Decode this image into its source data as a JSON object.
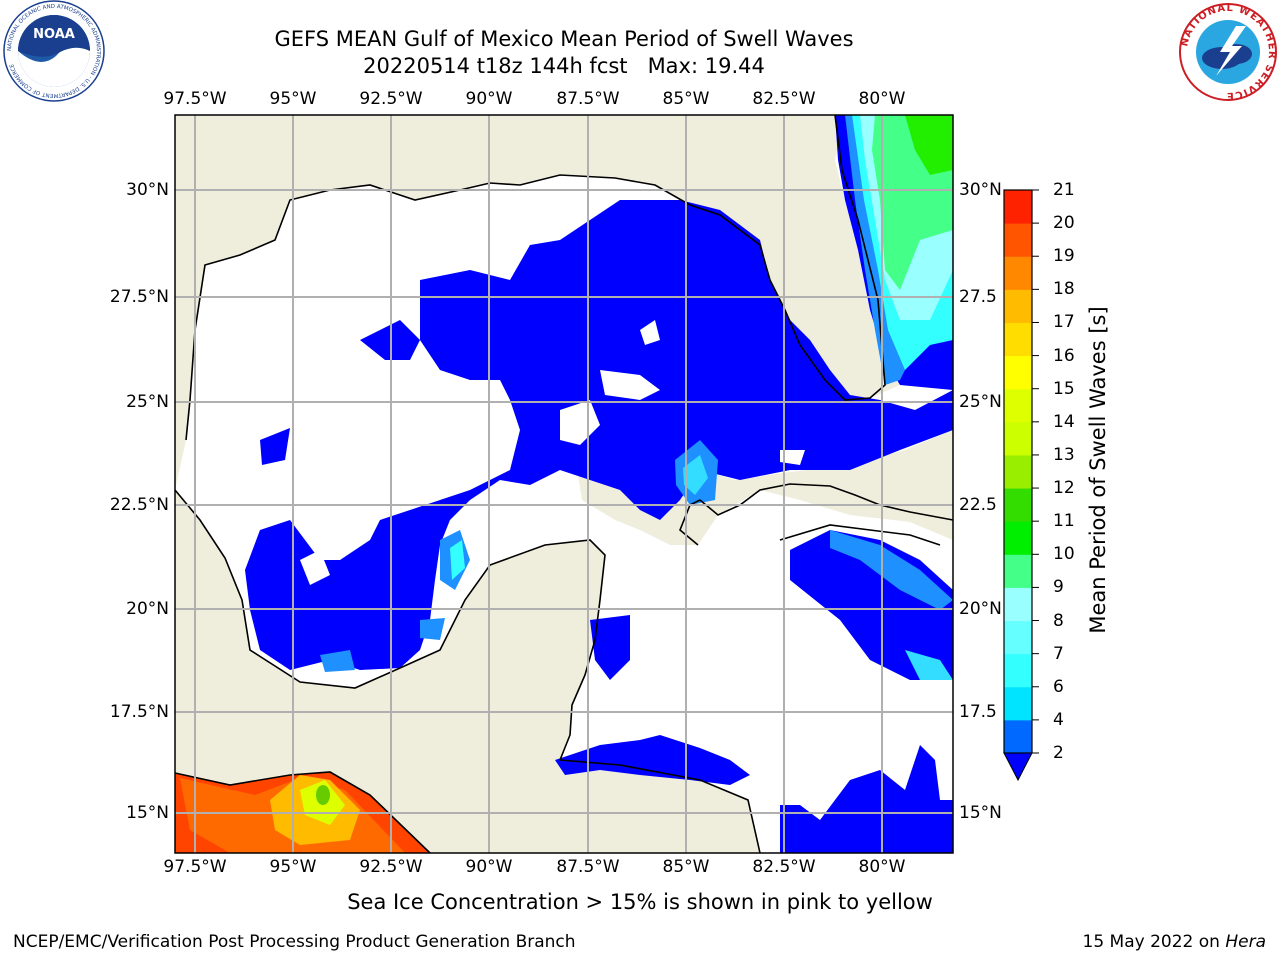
{
  "header": {
    "title_line1": "GEFS MEAN Gulf of Mexico Mean Period of Swell Waves",
    "title_line2": "20220514 t18z 144h fcst   Max: 19.44"
  },
  "logos": {
    "noaa_text": "NOAA",
    "noaa_ring_text": "NATIONAL OCEANIC AND ATMOSPHERIC ADMINISTRATION · U.S. DEPARTMENT OF COMMERCE",
    "nws_ring_text": "NATIONAL WEATHER SERVICE"
  },
  "map": {
    "lon_ticks": [
      "97.5°W",
      "95°W",
      "92.5°W",
      "90°W",
      "87.5°W",
      "85°W",
      "82.5°W",
      "80°W"
    ],
    "lat_ticks_left": [
      "30°N",
      "27.5°N",
      "25°N",
      "22.5°N",
      "20°N",
      "17.5°N",
      "15°N"
    ],
    "lat_ticks_right": [
      "30°N",
      "27.5",
      "25°N",
      "22.5",
      "20°N",
      "17.5",
      "15°N"
    ],
    "lon_range": [
      -98,
      -79
    ],
    "lat_range": [
      14,
      32
    ],
    "land_color": "#efeddc",
    "ocean_color": "#ffffff",
    "grid": true
  },
  "colorbar": {
    "label": "Mean Period of Swell Waves [s]",
    "ticks": [
      "2",
      "4",
      "6",
      "7",
      "8",
      "9",
      "10",
      "11",
      "12",
      "13",
      "14",
      "15",
      "16",
      "17",
      "18",
      "19",
      "20",
      "21"
    ],
    "levels": [
      2,
      4,
      6,
      7,
      8,
      9,
      10,
      11,
      12,
      13,
      14,
      15,
      16,
      17,
      18,
      19,
      20,
      21
    ],
    "colors": [
      "#0069ff",
      "#00e4ff",
      "#33ffff",
      "#66ffff",
      "#99ffff",
      "#44ff88",
      "#00ee00",
      "#33dd00",
      "#99ee00",
      "#ccff00",
      "#ddff00",
      "#ffff00",
      "#ffdd00",
      "#ffbb00",
      "#ff8800",
      "#ff5500",
      "#ff2200"
    ],
    "extend_color": "#0000ff"
  },
  "note": "Sea Ice Concentration > 15% is shown in pink to yellow",
  "footer": {
    "left": "NCEP/EMC/Verification Post Processing Product Generation Branch",
    "right_prefix": "15 May 2022 on ",
    "right_host": "Hera"
  }
}
